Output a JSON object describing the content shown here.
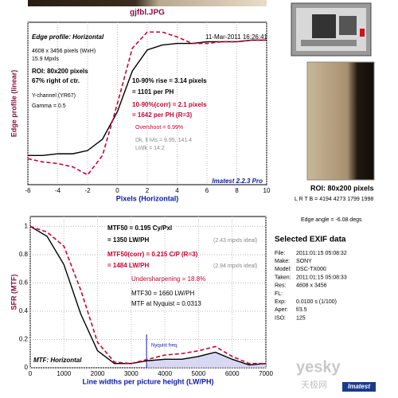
{
  "title": "gjfbl.JPG",
  "chart_data": [
    {
      "type": "line",
      "ylabel": "Edge profile (linear)",
      "xlabel": "Pixels (Horizontal)",
      "x": [
        -6,
        -5,
        -4,
        -3,
        -2,
        -1,
        0,
        1,
        2,
        3,
        4,
        5,
        6,
        7,
        8,
        9,
        10
      ],
      "series": [
        {
          "color": "#000000",
          "values": [
            0.18,
            0.18,
            0.19,
            0.19,
            0.21,
            0.28,
            0.45,
            0.7,
            0.83,
            0.86,
            0.87,
            0.87,
            0.88,
            0.88,
            0.88,
            0.89,
            0.89
          ]
        },
        {
          "color": "#cc0033",
          "values": [
            0.16,
            0.14,
            0.13,
            0.11,
            0.06,
            0.18,
            0.5,
            0.84,
            0.94,
            0.94,
            0.91,
            0.87,
            0.87,
            0.88,
            0.88,
            0.89,
            0.89
          ]
        }
      ],
      "xlim": [
        -6,
        10
      ],
      "xticks": [
        -6,
        -4,
        -2,
        0,
        2,
        4,
        6,
        8,
        10
      ],
      "ylim": [
        0,
        1
      ],
      "grid": true,
      "annotations": [
        "Edge profile: Horizontal",
        "11-Mar-2011 16:26:41",
        "4608 x 3456 pixels (WxH)",
        "15.9 Mpxls",
        "ROI: 80x200 pixels",
        "67% right of ctr.",
        "Y-channel (YR67)",
        "Gamma = 0.5",
        "10-90% rise = 3.14 pixels",
        "= 1101 per PH",
        "10-90%(corr) = 2.1 pixels",
        "= 1642 per PH  (R=3)",
        "Overshoot = 6.99%",
        "Dk, lt lvls = 9.95, 141.4",
        "Lt/dk = 14.2",
        "Imatest 2.2.3 Pro"
      ]
    },
    {
      "type": "line",
      "ylabel": "SFR (MTF)",
      "xlabel": "Line widths per picture height (LW/PH)",
      "x": [
        0,
        500,
        1000,
        1500,
        2000,
        2500,
        3000,
        3500,
        4000,
        4500,
        5000,
        5500,
        6000,
        6500,
        7000
      ],
      "series": [
        {
          "color": "#000000",
          "values": [
            1.0,
            0.93,
            0.73,
            0.38,
            0.12,
            0.03,
            0.03,
            0.05,
            0.06,
            0.06,
            0.08,
            0.11,
            0.06,
            0.02,
            0.03
          ]
        },
        {
          "color": "#cc0033",
          "values": [
            1.0,
            0.96,
            0.86,
            0.55,
            0.18,
            0.04,
            0.03,
            0.06,
            0.09,
            0.1,
            0.12,
            0.15,
            0.08,
            0.03,
            0.03
          ]
        }
      ],
      "xlim": [
        0,
        7000
      ],
      "xticks": [
        0,
        1000,
        2000,
        3000,
        4000,
        5000,
        6000,
        7000
      ],
      "ylim": [
        0,
        1.07
      ],
      "yticks": [
        0,
        0.2,
        0.4,
        0.6,
        0.8,
        1
      ],
      "grid": true,
      "nyquist": 3456,
      "annotations": [
        "MTF50 = 0.195 Cy/Pxl",
        "= 1350 LW/PH",
        "(2.43 mpxls ideal)",
        "MTF50(corr) = 0.215 C/P  (R=3)",
        "= 1484 LW/PH",
        "(2.94 mpxls ideal)",
        "Undersharpening = 18.8%",
        "MTF30 = 1660 LW/PH",
        "MTF at Nyquist = 0.0313",
        "Nyquist freq.",
        "MTF: Horizontal"
      ]
    }
  ],
  "side": {
    "roi": "ROI: 80x200 pixels",
    "lrtb": "L R T B = 4194 4273 1799 1998",
    "edge_angle": "Edge angle = -6.08 degs",
    "exif_title": "Selected EXIF data",
    "exif": [
      {
        "label": "File:",
        "value": "2011:01:15 05:08:32"
      },
      {
        "label": "Make:",
        "value": "SONY"
      },
      {
        "label": "Model:",
        "value": "DSC-TX000"
      },
      {
        "label": "Taken:",
        "value": "2011:01:15 05:08:33"
      },
      {
        "label": "Res:",
        "value": "4608 x 3456"
      },
      {
        "label": "FL:"
      },
      {
        "label": "Exp:",
        "value": "0.0100 s (1/100)"
      },
      {
        "label": "Aper:",
        "value": "f/3.5"
      },
      {
        "label": "ISO:",
        "value": "125"
      }
    ]
  },
  "watermark": [
    "yesky",
    "天极网",
    "Imatest"
  ]
}
